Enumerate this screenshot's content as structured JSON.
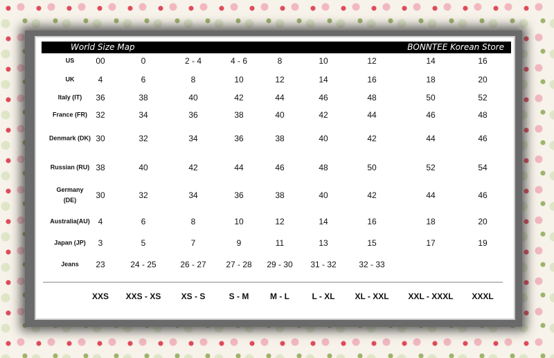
{
  "header": {
    "title": "World Size Map",
    "store": "BONNTEE Korean Store"
  },
  "rows": [
    {
      "label": "US",
      "values": [
        "00",
        "0",
        "2 - 4",
        "4 - 6",
        "8",
        "10",
        "12",
        "14",
        "16"
      ]
    },
    {
      "label": "UK",
      "values": [
        "4",
        "6",
        "8",
        "10",
        "12",
        "14",
        "16",
        "18",
        "20"
      ]
    },
    {
      "label": "Italy (IT)",
      "values": [
        "36",
        "38",
        "40",
        "42",
        "44",
        "46",
        "48",
        "50",
        "52"
      ]
    },
    {
      "label": "France (FR)",
      "values": [
        "32",
        "34",
        "36",
        "38",
        "40",
        "42",
        "44",
        "46",
        "48"
      ]
    },
    {
      "label": "Denmark (DK)",
      "values": [
        "30",
        "32",
        "34",
        "36",
        "38",
        "40",
        "42",
        "44",
        "46"
      ]
    },
    {
      "label": "Russian (RU)",
      "values": [
        "38",
        "40",
        "42",
        "44",
        "46",
        "48",
        "50",
        "52",
        "54"
      ]
    },
    {
      "label": "Germany (DE)",
      "values": [
        "30",
        "32",
        "34",
        "36",
        "38",
        "40",
        "42",
        "44",
        "46"
      ]
    },
    {
      "label": "Australia(AU)",
      "values": [
        "4",
        "6",
        "8",
        "10",
        "12",
        "14",
        "16",
        "18",
        "20"
      ]
    },
    {
      "label": "Japan (JP)",
      "values": [
        "3",
        "5",
        "7",
        "9",
        "11",
        "13",
        "15",
        "17",
        "19"
      ]
    },
    {
      "label": "Jeans",
      "values": [
        "23",
        "24 - 25",
        "26 - 27",
        "27 - 28",
        "29 - 30",
        "31 - 32",
        "32 - 33",
        "",
        ""
      ]
    }
  ],
  "sizes": [
    "XXS",
    "XXS - XS",
    "XS - S",
    "S - M",
    "M - L",
    "L - XL",
    "XL - XXL",
    "XXL - XXXL",
    "XXXL"
  ]
}
